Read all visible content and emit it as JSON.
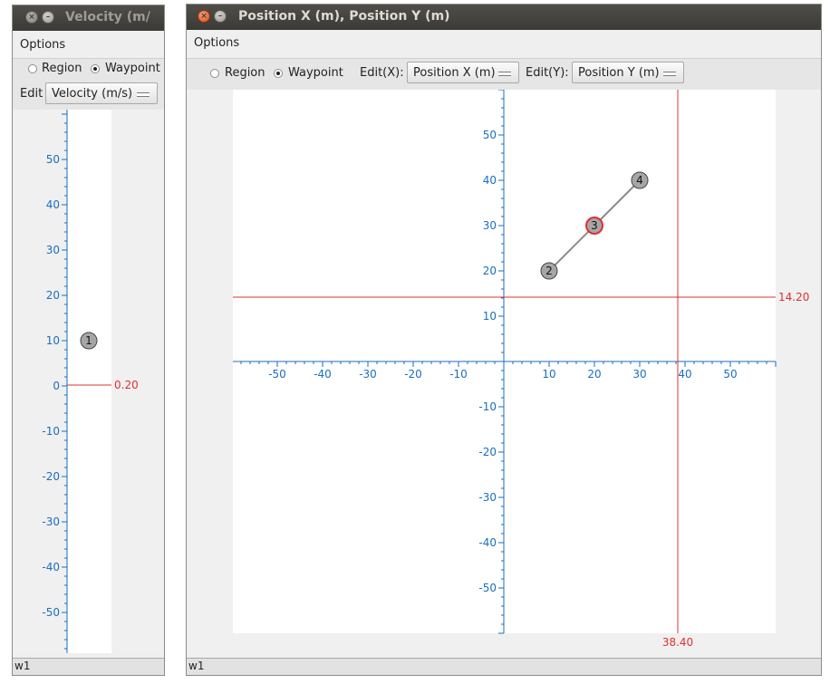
{
  "left_window": {
    "title": "Velocity (m/",
    "menu": {
      "options": "Options"
    },
    "mode": {
      "region": "Region",
      "waypoint": "Waypoint",
      "selected": "waypoint"
    },
    "edit_label": "Edit",
    "edit_value": "Velocity (m/s)",
    "status": "w1",
    "close_icon": "×",
    "min_icon": "–",
    "plot": {
      "ticks_y": [
        50,
        40,
        30,
        20,
        10,
        0,
        -10,
        -20,
        -30,
        -40,
        -50
      ],
      "tick_labels_y": [
        "50",
        "40",
        "30",
        "20",
        "10",
        "0",
        "-10",
        "-20",
        "-30",
        "-40",
        "-50"
      ],
      "cursor_y": 0.2,
      "cursor_label": "0.20",
      "waypoints": [
        {
          "id": "1",
          "label": "1",
          "y": 10
        }
      ],
      "colors": {
        "axis": "#1a6fc0",
        "cursor": "#e03030",
        "point": "#a6a6a6"
      }
    }
  },
  "right_window": {
    "title": "Position X (m), Position Y (m)",
    "menu": {
      "options": "Options"
    },
    "mode": {
      "region": "Region",
      "waypoint": "Waypoint",
      "selected": "waypoint"
    },
    "edit_x_label": "Edit(X):",
    "edit_x_value": "Position X (m)",
    "edit_y_label": "Edit(Y):",
    "edit_y_value": "Position Y (m)",
    "status": "w1",
    "close_icon": "×",
    "min_icon": "–",
    "plot": {
      "ticks_x": [
        -50,
        -40,
        -30,
        -20,
        -10,
        10,
        20,
        30,
        40,
        50
      ],
      "tick_labels_x": [
        "-50",
        "-40",
        "-30",
        "-20",
        "-10",
        "10",
        "20",
        "30",
        "40",
        "50"
      ],
      "ticks_y": [
        50,
        40,
        30,
        20,
        10,
        -10,
        -20,
        -30,
        -40,
        -50
      ],
      "tick_labels_y": [
        "50",
        "40",
        "30",
        "20",
        "10",
        "-10",
        "-20",
        "-30",
        "-40",
        "-50"
      ],
      "cursor_x": 38.4,
      "cursor_x_label": "38.40",
      "cursor_y": 14.2,
      "cursor_y_label": "14.20",
      "waypoints": [
        {
          "id": "2",
          "label": "2",
          "x": 10,
          "y": 20,
          "selected": false
        },
        {
          "id": "3",
          "label": "3",
          "x": 20,
          "y": 30,
          "selected": true
        },
        {
          "id": "4",
          "label": "4",
          "x": 30,
          "y": 40,
          "selected": false
        }
      ],
      "colors": {
        "axis": "#1a6fc0",
        "cursor": "#e03030",
        "point": "#a6a6a6",
        "path": "#8c8c8c"
      }
    }
  }
}
